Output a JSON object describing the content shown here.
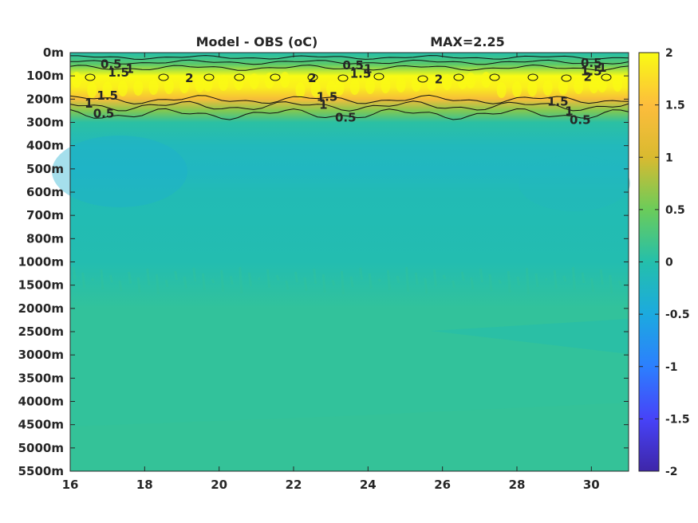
{
  "chart_data": {
    "type": "heatmap",
    "title": "Model - OBS (",
    "title_unit": "oC",
    "title_close": ")",
    "max_label": "MAX=2.25",
    "x_ticks": [
      16,
      18,
      20,
      22,
      24,
      26,
      28,
      30
    ],
    "xlim": [
      16,
      31
    ],
    "y_tick_labels": [
      "0m",
      "100m",
      "200m",
      "300m",
      "400m",
      "500m",
      "600m",
      "700m",
      "800m",
      "1000m",
      "1500m",
      "2000m",
      "2500m",
      "3000m",
      "3500m",
      "4000m",
      "4500m",
      "5000m",
      "5500m"
    ],
    "colorbar_ticks": [
      "2",
      "1.5",
      "1",
      "0.5",
      "0",
      "-0.5",
      "-1",
      "-1.5",
      "-2"
    ],
    "clim": [
      -2,
      2
    ],
    "colormap": [
      "#3e26a8",
      "#4743f8",
      "#2c7ffe",
      "#1caadf",
      "#24bfab",
      "#6bcc5a",
      "#d9ba30",
      "#fdbd3c",
      "#f9fb14"
    ],
    "field_depth_levels": [
      {
        "depth": "0m",
        "value": 0.0
      },
      {
        "depth": "50m",
        "value": 0.4
      },
      {
        "depth": "100m",
        "value": 2.0
      },
      {
        "depth": "150m",
        "value": 1.9
      },
      {
        "depth": "200m",
        "value": 1.4
      },
      {
        "depth": "250m",
        "value": 0.6
      },
      {
        "depth": "300m",
        "value": 0.05
      },
      {
        "depth": "400m",
        "value": -0.15
      },
      {
        "depth": "500m",
        "value": -0.2
      },
      {
        "depth": "600m",
        "value": -0.1
      },
      {
        "depth": "1000m",
        "value": -0.05
      },
      {
        "depth": "2000m",
        "value": 0.1
      },
      {
        "depth": "5500m",
        "value": 0.1
      }
    ],
    "contour_labels": [
      {
        "text": "0.5",
        "x": 17.1,
        "depth": "50m"
      },
      {
        "text": "1",
        "x": 17.6,
        "depth": "70m"
      },
      {
        "text": "1.5",
        "x": 17.3,
        "depth": "85m"
      },
      {
        "text": "2",
        "x": 19.2,
        "depth": "110m"
      },
      {
        "text": "0.5",
        "x": 23.6,
        "depth": "55m"
      },
      {
        "text": "1",
        "x": 24.0,
        "depth": "70m"
      },
      {
        "text": "1.5",
        "x": 23.8,
        "depth": "90m"
      },
      {
        "text": "2",
        "x": 22.5,
        "depth": "110m"
      },
      {
        "text": "2",
        "x": 25.9,
        "depth": "115m"
      },
      {
        "text": "0.5",
        "x": 30.0,
        "depth": "45m"
      },
      {
        "text": "1",
        "x": 30.3,
        "depth": "65m"
      },
      {
        "text": "1.5",
        "x": 30.0,
        "depth": "80m"
      },
      {
        "text": "2",
        "x": 29.9,
        "depth": "105m"
      },
      {
        "text": "1.5",
        "x": 17.0,
        "depth": "185m"
      },
      {
        "text": "1",
        "x": 16.5,
        "depth": "220m"
      },
      {
        "text": "0.5",
        "x": 16.9,
        "depth": "262m"
      },
      {
        "text": "1.5",
        "x": 22.9,
        "depth": "190m"
      },
      {
        "text": "1",
        "x": 22.8,
        "depth": "225m"
      },
      {
        "text": "0.5",
        "x": 23.4,
        "depth": "280m"
      },
      {
        "text": "1.5",
        "x": 29.1,
        "depth": "210m"
      },
      {
        "text": "1",
        "x": 29.4,
        "depth": "252m"
      },
      {
        "text": "0.5",
        "x": 29.7,
        "depth": "290m"
      }
    ]
  }
}
